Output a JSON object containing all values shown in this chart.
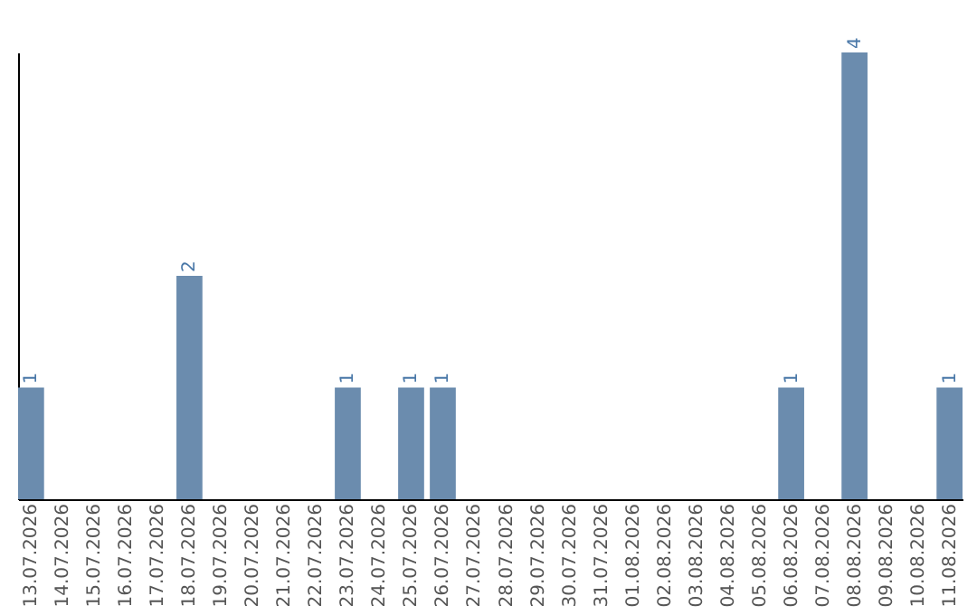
{
  "chart_data": {
    "type": "bar",
    "categories": [
      "13.07.2026",
      "14.07.2026",
      "15.07.2026",
      "16.07.2026",
      "17.07.2026",
      "18.07.2026",
      "19.07.2026",
      "20.07.2026",
      "21.07.2026",
      "22.07.2026",
      "23.07.2026",
      "24.07.2026",
      "25.07.2026",
      "26.07.2026",
      "27.07.2026",
      "28.07.2026",
      "29.07.2026",
      "30.07.2026",
      "31.07.2026",
      "01.08.2026",
      "02.08.2026",
      "03.08.2026",
      "04.08.2026",
      "05.08.2026",
      "06.08.2026",
      "07.08.2026",
      "08.08.2026",
      "09.08.2026",
      "10.08.2026",
      "11.08.2026"
    ],
    "values": [
      1,
      0,
      0,
      0,
      0,
      2,
      0,
      0,
      0,
      0,
      1,
      0,
      1,
      1,
      0,
      0,
      0,
      0,
      0,
      0,
      0,
      0,
      0,
      0,
      1,
      0,
      4,
      0,
      0,
      1
    ],
    "value_labels": [
      "1",
      null,
      null,
      null,
      null,
      "2",
      null,
      null,
      null,
      null,
      "1",
      null,
      "1",
      "1",
      null,
      null,
      null,
      null,
      null,
      null,
      null,
      null,
      null,
      null,
      "1",
      null,
      "4",
      null,
      null,
      "1"
    ],
    "color": "#6b8cae",
    "grid": false,
    "tick_labels": "x"
  }
}
